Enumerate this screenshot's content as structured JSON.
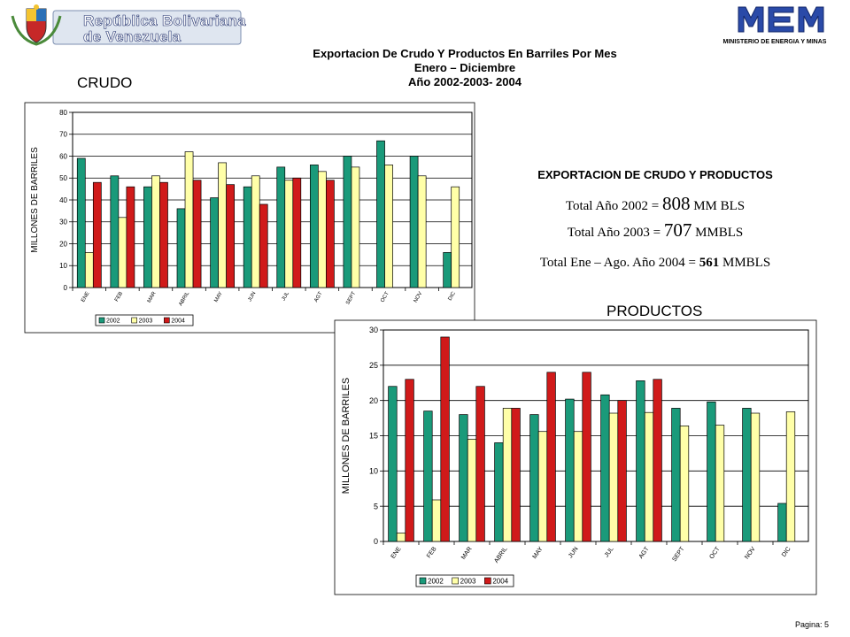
{
  "header": {
    "country_line1": "República Bolivariana",
    "country_line2": "de Venezuela",
    "ministry_logo_text": "MEM",
    "ministry_name": "MINISTERIO DE ENERGIA Y MINAS"
  },
  "title": {
    "line1": "Exportacion De Crudo Y Productos En Barriles Por Mes",
    "line2": "Enero – Diciembre",
    "line3": "Año 2002-2003- 2004"
  },
  "summary": {
    "heading": "EXPORTACION DE CRUDO Y PRODUCTOS",
    "line1_prefix": "Total Año 2002 = ",
    "line1_value": "808",
    "line1_suffix": " MM BLS",
    "line2_prefix": "Total Año 2003 = ",
    "line2_value": "707",
    "line2_suffix": " MMBLS",
    "line3_prefix": "Total Ene – Ago. Año  2004 = ",
    "line3_value": "561",
    "line3_suffix": " MMBLS"
  },
  "colors": {
    "s2002": "#1a9a7a",
    "s2003": "#ffffa8",
    "s2004": "#d01a1a"
  },
  "footer": {
    "page": "Pagina: 5"
  },
  "chart_data": [
    {
      "type": "bar",
      "title": "CRUDO",
      "ylabel": "MILLONES  DE BARRILES",
      "ylim": [
        0,
        80
      ],
      "yticks": [
        0,
        10,
        20,
        30,
        40,
        50,
        60,
        70,
        80
      ],
      "grid": true,
      "legend": "bottom",
      "categories": [
        "ENE",
        "FEB",
        "MAR",
        "ABRIL",
        "MAY",
        "JUN",
        "JUL",
        "AGT",
        "SEPT",
        "OCT",
        "NOV",
        "DIC"
      ],
      "series": [
        {
          "name": "2002",
          "values": [
            59,
            51,
            46,
            36,
            41,
            46,
            55,
            56,
            60,
            67,
            60,
            16
          ]
        },
        {
          "name": "2003",
          "values": [
            16,
            32,
            51,
            62,
            57,
            51,
            49,
            53,
            55,
            56,
            51,
            46
          ]
        },
        {
          "name": "2004",
          "values": [
            48,
            46,
            48,
            49,
            47,
            38,
            50,
            49,
            null,
            null,
            null,
            null
          ]
        }
      ]
    },
    {
      "type": "bar",
      "title": "PRODUCTOS",
      "ylabel": "MILLONES  DE BARRILES",
      "ylim": [
        0,
        30
      ],
      "yticks": [
        0,
        5,
        10,
        15,
        20,
        25,
        30
      ],
      "grid": true,
      "legend": "bottom",
      "categories": [
        "ENE",
        "FEB",
        "MAR",
        "ABRIL",
        "MAY",
        "JUN",
        "JUL",
        "AGT",
        "SEPT",
        "OCT",
        "NOV",
        "DIC"
      ],
      "series": [
        {
          "name": "2002",
          "values": [
            22,
            18.5,
            18,
            14,
            18,
            20.2,
            20.8,
            22.8,
            18.9,
            19.8,
            18.9,
            5.4
          ]
        },
        {
          "name": "2003",
          "values": [
            1.2,
            5.9,
            14.5,
            18.9,
            15.6,
            15.6,
            18.2,
            18.3,
            16.4,
            16.5,
            18.2,
            18.4
          ]
        },
        {
          "name": "2004",
          "values": [
            23,
            29,
            22,
            18.9,
            24,
            24,
            20,
            23,
            null,
            null,
            null,
            null
          ]
        }
      ]
    }
  ]
}
